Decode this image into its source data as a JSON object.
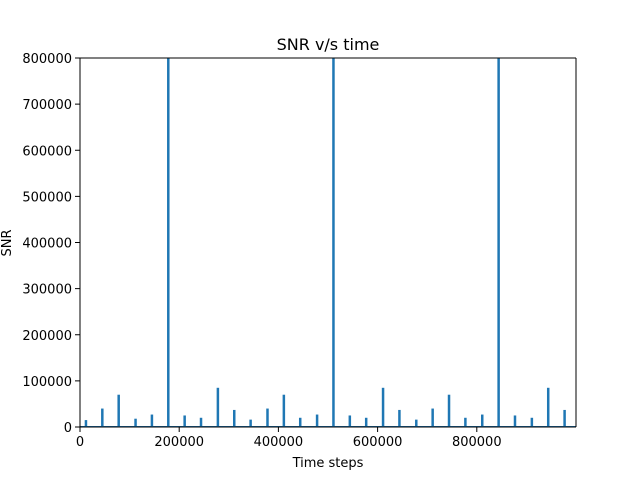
{
  "chart_data": {
    "type": "line",
    "title": "SNR v/s time",
    "xlabel": "Time steps",
    "ylabel": "SNR",
    "xlim": [
      0,
      1000000
    ],
    "ylim": [
      0,
      800000
    ],
    "x_ticks": [
      0,
      200000,
      400000,
      600000,
      800000
    ],
    "x_tick_labels": [
      "0",
      "200000",
      "400000",
      "600000",
      "800000"
    ],
    "y_ticks": [
      0,
      100000,
      200000,
      300000,
      400000,
      500000,
      600000,
      700000,
      800000
    ],
    "y_tick_labels": [
      "0",
      "100000",
      "200000",
      "300000",
      "400000",
      "500000",
      "600000",
      "700000",
      "800000"
    ],
    "grid": false,
    "line_color": "#1f77b4",
    "spikes": [
      {
        "x": 12000,
        "y": 15000
      },
      {
        "x": 45000,
        "y": 40000
      },
      {
        "x": 78000,
        "y": 70000
      },
      {
        "x": 112000,
        "y": 18000
      },
      {
        "x": 145000,
        "y": 27000
      },
      {
        "x": 178000,
        "y": 800000
      },
      {
        "x": 211000,
        "y": 25000
      },
      {
        "x": 244000,
        "y": 20000
      },
      {
        "x": 278000,
        "y": 85000
      },
      {
        "x": 311000,
        "y": 37000
      },
      {
        "x": 344000,
        "y": 16000
      },
      {
        "x": 378000,
        "y": 40000
      },
      {
        "x": 411000,
        "y": 70000
      },
      {
        "x": 444000,
        "y": 20000
      },
      {
        "x": 478000,
        "y": 27000
      },
      {
        "x": 511000,
        "y": 800000
      },
      {
        "x": 544000,
        "y": 25000
      },
      {
        "x": 577000,
        "y": 20000
      },
      {
        "x": 611000,
        "y": 85000
      },
      {
        "x": 644000,
        "y": 37000
      },
      {
        "x": 678000,
        "y": 16000
      },
      {
        "x": 711000,
        "y": 40000
      },
      {
        "x": 744000,
        "y": 70000
      },
      {
        "x": 777000,
        "y": 20000
      },
      {
        "x": 811000,
        "y": 27000
      },
      {
        "x": 844000,
        "y": 800000
      },
      {
        "x": 877000,
        "y": 25000
      },
      {
        "x": 911000,
        "y": 20000
      },
      {
        "x": 944000,
        "y": 85000
      },
      {
        "x": 977000,
        "y": 37000
      }
    ]
  }
}
